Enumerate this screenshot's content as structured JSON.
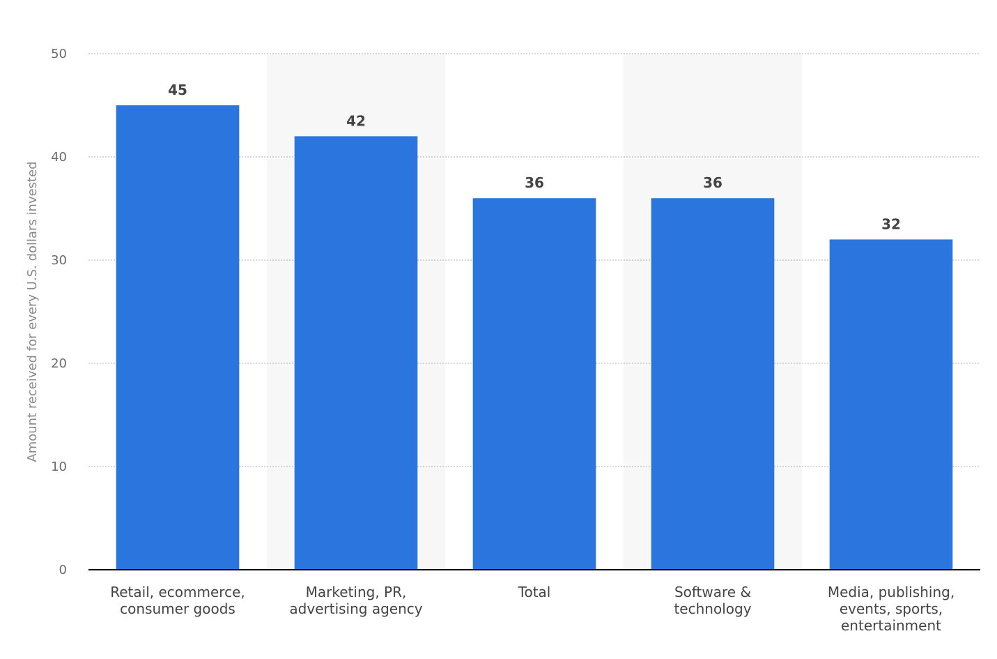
{
  "chart_data": {
    "type": "bar",
    "categories": [
      [
        "Retail, ecommerce,",
        "consumer goods"
      ],
      [
        "Marketing, PR,",
        "advertising agency"
      ],
      [
        "Total"
      ],
      [
        "Software &",
        "technology"
      ],
      [
        "Media, publishing,",
        "events, sports,",
        "entertainment"
      ]
    ],
    "values": [
      45,
      42,
      36,
      36,
      32
    ],
    "data_labels": [
      "45",
      "42",
      "36",
      "36",
      "32"
    ],
    "ylabel": "Amount received for every U.S. dollars invested",
    "xlabel": "",
    "ylim": [
      0,
      50
    ],
    "yticks": [
      0,
      10,
      20,
      30,
      40,
      50
    ],
    "grid": "dotted horizontal",
    "legend": "none",
    "bar_color": "#2a75de",
    "band_color": "#f7f7f7"
  }
}
